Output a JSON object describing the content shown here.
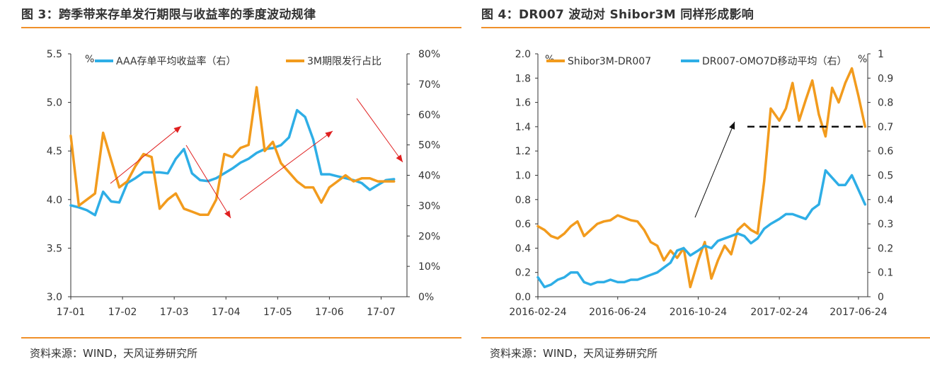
{
  "left": {
    "title": "图 3：跨季带来存单发行期限与收益率的季度波动规律",
    "source": "资料来源：WIND，天风证券研究所"
  },
  "right": {
    "title": "图 4：DR007 波动对 Shibor3M 同样形成影响",
    "source": "资料来源：WIND，天风证券研究所"
  },
  "colors": {
    "orange": "#f29b1d",
    "blue": "#2eaee6",
    "rule": "#f0902a",
    "red_arrow": "#e02020"
  },
  "chart_data": [
    {
      "type": "line",
      "title": "跨季带来存单发行期限与收益率的季度波动规律",
      "xlabel": "",
      "ylabel": "%",
      "ylim": [
        3.0,
        5.5
      ],
      "y2lim": [
        0,
        80
      ],
      "yticks": [
        "3.0",
        "3.5",
        "4.0",
        "4.5",
        "5.0",
        "5.5"
      ],
      "y2ticks": [
        "0%",
        "10%",
        "20%",
        "30%",
        "40%",
        "50%",
        "60%",
        "70%",
        "80%"
      ],
      "xticks": [
        "17-01",
        "17-02",
        "17-03",
        "17-04",
        "17-05",
        "17-06",
        "17-07"
      ],
      "legend_position": "top",
      "grid": false,
      "series": [
        {
          "name": "AAA存单平均收益率（右）",
          "axis": "left",
          "color": "blue",
          "x": [
            0,
            0.25,
            0.5,
            0.75,
            1,
            1.25,
            1.5,
            1.75,
            2,
            2.25,
            2.5,
            2.75,
            3,
            3.25,
            3.5,
            3.75,
            4,
            4.25,
            4.5,
            4.75,
            5,
            5.25,
            5.5,
            5.75,
            6,
            6.25,
            6.5,
            6.75,
            7,
            7.25,
            7.5,
            7.75,
            8,
            8.25,
            8.5,
            8.75,
            9,
            9.25,
            9.5,
            9.75,
            10
          ],
          "values": [
            3.94,
            3.92,
            3.89,
            3.84,
            4.08,
            3.98,
            3.97,
            4.17,
            4.22,
            4.28,
            4.28,
            4.28,
            4.27,
            4.42,
            4.52,
            4.27,
            4.2,
            4.19,
            4.22,
            4.27,
            4.32,
            4.38,
            4.42,
            4.48,
            4.52,
            4.53,
            4.56,
            4.64,
            4.92,
            4.85,
            4.62,
            4.26,
            4.26,
            4.24,
            4.22,
            4.2,
            4.17,
            4.1,
            4.15,
            4.2,
            4.21
          ]
        },
        {
          "name": "3M期限发行占比",
          "axis": "right",
          "color": "orange",
          "x": [
            0,
            0.25,
            0.5,
            0.75,
            1,
            1.25,
            1.5,
            1.75,
            2,
            2.25,
            2.5,
            2.75,
            3,
            3.25,
            3.5,
            3.75,
            4,
            4.25,
            4.5,
            4.75,
            5,
            5.25,
            5.5,
            5.75,
            6,
            6.25,
            6.5,
            6.75,
            7,
            7.25,
            7.5,
            7.75,
            8,
            8.25,
            8.5,
            8.75,
            9,
            9.25,
            9.5,
            9.75,
            10
          ],
          "values": [
            53,
            30,
            32,
            34,
            54,
            45,
            36,
            38,
            43,
            47,
            46,
            29,
            32,
            34,
            29,
            28,
            27,
            27,
            32,
            47,
            46,
            49,
            50,
            69,
            48,
            51,
            44,
            41,
            38,
            36,
            36,
            31,
            36,
            38,
            40,
            38,
            39,
            39,
            38,
            38,
            38
          ]
        }
      ]
    },
    {
      "type": "line",
      "title": "DR007 波动对 Shibor3M 同样形成影响",
      "xlabel": "",
      "ylabel": "%",
      "ylim": [
        0.0,
        2.0
      ],
      "y2lim": [
        0,
        1
      ],
      "yticks": [
        "0.0",
        "0.2",
        "0.4",
        "0.6",
        "0.8",
        "1.0",
        "1.2",
        "1.4",
        "1.6",
        "1.8",
        "2.0"
      ],
      "y2ticks": [
        "0",
        "0.1",
        "0.2",
        "0.3",
        "0.4",
        "0.5",
        "0.6",
        "0.7",
        "0.8",
        "0.9",
        "1"
      ],
      "xticks": [
        "2016-02-24",
        "2016-06-24",
        "2016-10-24",
        "2017-02-24",
        "2017-06-24"
      ],
      "legend_position": "top",
      "grid": false,
      "series": [
        {
          "name": "Shibor3M-DR007",
          "axis": "left",
          "color": "orange",
          "x": [
            "2016-02-24",
            "2016-03-05",
            "2016-03-15",
            "2016-03-25",
            "2016-04-04",
            "2016-04-14",
            "2016-04-24",
            "2016-05-04",
            "2016-05-14",
            "2016-05-24",
            "2016-06-03",
            "2016-06-13",
            "2016-06-24",
            "2016-07-04",
            "2016-07-14",
            "2016-07-24",
            "2016-08-03",
            "2016-08-13",
            "2016-08-23",
            "2016-09-02",
            "2016-09-12",
            "2016-09-22",
            "2016-10-02",
            "2016-10-12",
            "2016-10-24",
            "2016-11-03",
            "2016-11-13",
            "2016-11-23",
            "2016-12-03",
            "2016-12-13",
            "2016-12-23",
            "2017-01-02",
            "2017-01-12",
            "2017-01-22",
            "2017-02-01",
            "2017-02-11",
            "2017-02-24",
            "2017-03-06",
            "2017-03-16",
            "2017-03-26",
            "2017-04-05",
            "2017-04-15",
            "2017-04-25",
            "2017-05-05",
            "2017-05-15",
            "2017-05-25",
            "2017-06-04",
            "2017-06-14",
            "2017-06-24",
            "2017-07-04"
          ],
          "values": [
            0.58,
            0.55,
            0.5,
            0.48,
            0.52,
            0.58,
            0.62,
            0.5,
            0.55,
            0.6,
            0.62,
            0.63,
            0.67,
            0.65,
            0.63,
            0.62,
            0.55,
            0.45,
            0.42,
            0.3,
            0.38,
            0.32,
            0.4,
            0.08,
            0.3,
            0.45,
            0.15,
            0.3,
            0.42,
            0.35,
            0.55,
            0.6,
            0.55,
            0.52,
            0.95,
            1.55,
            1.45,
            1.55,
            1.76,
            1.45,
            1.62,
            1.78,
            1.5,
            1.32,
            1.72,
            1.6,
            1.76,
            1.88,
            1.65,
            1.4
          ]
        },
        {
          "name": "DR007-OMO7D移动平均（右）",
          "axis": "right",
          "color": "blue",
          "x": [
            "2016-02-24",
            "2016-03-05",
            "2016-03-15",
            "2016-03-25",
            "2016-04-04",
            "2016-04-14",
            "2016-04-24",
            "2016-05-04",
            "2016-05-14",
            "2016-05-24",
            "2016-06-03",
            "2016-06-13",
            "2016-06-24",
            "2016-07-04",
            "2016-07-14",
            "2016-07-24",
            "2016-08-03",
            "2016-08-13",
            "2016-08-23",
            "2016-09-02",
            "2016-09-12",
            "2016-09-22",
            "2016-10-02",
            "2016-10-12",
            "2016-10-24",
            "2016-11-03",
            "2016-11-13",
            "2016-11-23",
            "2016-12-03",
            "2016-12-13",
            "2016-12-23",
            "2017-01-02",
            "2017-01-12",
            "2017-01-22",
            "2017-02-01",
            "2017-02-11",
            "2017-02-24",
            "2017-03-06",
            "2017-03-16",
            "2017-03-26",
            "2017-04-05",
            "2017-04-15",
            "2017-04-25",
            "2017-05-05",
            "2017-05-15",
            "2017-05-25",
            "2017-06-04",
            "2017-06-14",
            "2017-06-24",
            "2017-07-04"
          ],
          "values": [
            0.08,
            0.04,
            0.05,
            0.07,
            0.08,
            0.1,
            0.1,
            0.06,
            0.05,
            0.06,
            0.06,
            0.07,
            0.06,
            0.06,
            0.07,
            0.07,
            0.08,
            0.09,
            0.1,
            0.12,
            0.14,
            0.19,
            0.2,
            0.17,
            0.19,
            0.21,
            0.2,
            0.23,
            0.24,
            0.25,
            0.26,
            0.25,
            0.22,
            0.24,
            0.28,
            0.3,
            0.32,
            0.34,
            0.34,
            0.33,
            0.32,
            0.36,
            0.38,
            0.52,
            0.49,
            0.46,
            0.46,
            0.5,
            0.44,
            0.38
          ]
        }
      ]
    }
  ]
}
